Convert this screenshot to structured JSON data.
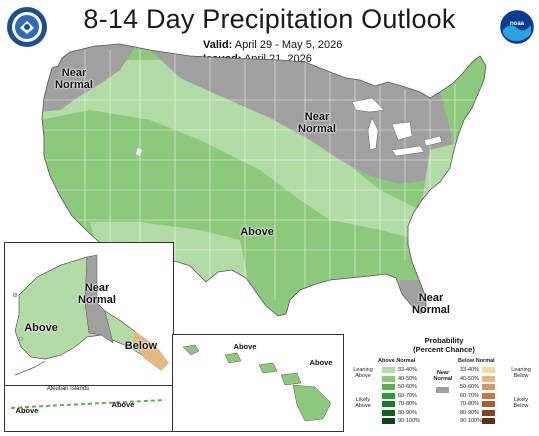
{
  "header": {
    "title": "8-14 Day Precipitation Outlook",
    "valid_label": "Valid:",
    "valid_value": "April 29 - May 5, 2026",
    "issued_label": "Issued:",
    "issued_value": "April 21, 2026"
  },
  "map_labels": {
    "near_normal_nw_1": "Near",
    "near_normal_nw_2": "Normal",
    "near_normal_mw_1": "Near",
    "near_normal_mw_2": "Normal",
    "above_center": "Above",
    "near_normal_fl_1": "Near",
    "near_normal_fl_2": "Normal",
    "alaska_near_1": "Near",
    "alaska_near_2": "Normal",
    "alaska_above": "Above",
    "alaska_below": "Below",
    "aleutian_title": "Aleutian Islands",
    "aleutian_above_1": "Above",
    "aleutian_above_2": "Above",
    "hawaii_above_1": "Above",
    "hawaii_above_2": "Above"
  },
  "legend": {
    "title_1": "Probability",
    "title_2": "(Percent Chance)",
    "above_header": "Above Normal",
    "below_header": "Below Normal",
    "near_label_1": "Near",
    "near_label_2": "Normal",
    "leaning_above_1": "Leaning",
    "leaning_above_2": "Above",
    "likely_above_1": "Likely",
    "likely_above_2": "Above",
    "leaning_below_1": "Leaning",
    "leaning_below_2": "Below",
    "likely_below_1": "Likely",
    "likely_below_2": "Below",
    "ranges": [
      "33-40%",
      "40-50%",
      "50-60%",
      "60-70%",
      "70-80%",
      "80-90%",
      "90-100%"
    ],
    "above_colors": [
      "#b3dba5",
      "#8cc97c",
      "#5cb04e",
      "#2e9a35",
      "#1a7a28",
      "#11621e",
      "#0a4513"
    ],
    "below_colors": [
      "#f2d9a6",
      "#e3b883",
      "#d39a63",
      "#bf7b45",
      "#a35e33",
      "#834426",
      "#5e2e18"
    ],
    "near_color": "#a0a0a0"
  },
  "colors": {
    "above_light": "#b3dba5",
    "above_mid": "#8cc97c",
    "near": "#a0a0a0",
    "below": "#e3b883"
  },
  "logos": {
    "left": "Department of Commerce seal",
    "right": "NOAA"
  }
}
